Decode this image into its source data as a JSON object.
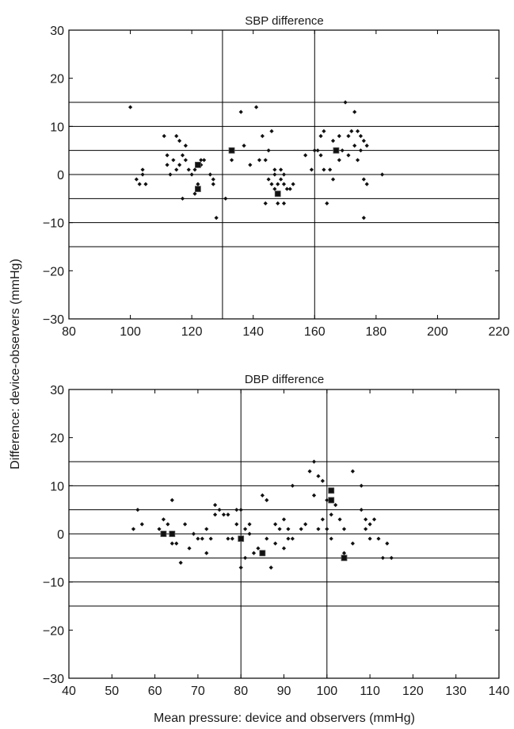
{
  "figure": {
    "ylabel": "Difference: device-observers (mmHg)",
    "xlabel": "Mean pressure: device and observers (mmHg)"
  },
  "colors": {
    "axis": "#000000",
    "marker": "#111111",
    "background": "#ffffff"
  },
  "chart_data": [
    {
      "type": "scatter",
      "title": "SBP difference",
      "xlim": [
        80,
        220
      ],
      "ylim": [
        -30,
        30
      ],
      "xticks": [
        "80",
        "100",
        "120",
        "140",
        "160",
        "180",
        "200",
        "220"
      ],
      "yticks": [
        "30",
        "20",
        "10",
        "0",
        "−10",
        "−20",
        "−30"
      ],
      "xtick_values": [
        80,
        100,
        120,
        140,
        160,
        180,
        200,
        220
      ],
      "ytick_values": [
        30,
        20,
        10,
        0,
        -10,
        -20,
        -30
      ],
      "reference_lines_y": [
        15,
        10,
        5,
        0,
        -5,
        -10,
        -15
      ],
      "reference_lines_x": [
        130,
        160
      ],
      "grid": false,
      "series": [
        {
          "marker": "diamond",
          "points": [
            [
              100,
              14
            ],
            [
              102,
              -1
            ],
            [
              103,
              -2
            ],
            [
              104,
              1
            ],
            [
              104,
              0
            ],
            [
              105,
              -2
            ],
            [
              111,
              8
            ],
            [
              112,
              4
            ],
            [
              112,
              2
            ],
            [
              113,
              0
            ],
            [
              114,
              3
            ],
            [
              115,
              8
            ],
            [
              115,
              1
            ],
            [
              116,
              7
            ],
            [
              116,
              2
            ],
            [
              117,
              4
            ],
            [
              117,
              -5
            ],
            [
              118,
              6
            ],
            [
              118,
              3
            ],
            [
              119,
              1
            ],
            [
              120,
              0
            ],
            [
              121,
              -4
            ],
            [
              121,
              1
            ],
            [
              122,
              -2
            ],
            [
              123,
              3
            ],
            [
              123,
              2
            ],
            [
              124,
              3
            ],
            [
              126,
              0
            ],
            [
              127,
              -1
            ],
            [
              127,
              -2
            ],
            [
              128,
              -9
            ],
            [
              131,
              -5
            ],
            [
              133,
              3
            ],
            [
              136,
              13
            ],
            [
              137,
              6
            ],
            [
              139,
              2
            ],
            [
              141,
              14
            ],
            [
              142,
              3
            ],
            [
              143,
              8
            ],
            [
              144,
              3
            ],
            [
              144,
              -6
            ],
            [
              145,
              5
            ],
            [
              145,
              -1
            ],
            [
              146,
              9
            ],
            [
              146,
              -2
            ],
            [
              147,
              1
            ],
            [
              147,
              -3
            ],
            [
              147,
              0
            ],
            [
              148,
              -6
            ],
            [
              148,
              -2
            ],
            [
              149,
              1
            ],
            [
              149,
              -1
            ],
            [
              150,
              -2
            ],
            [
              150,
              -6
            ],
            [
              150,
              0
            ],
            [
              151,
              -3
            ],
            [
              152,
              -3
            ],
            [
              153,
              -2
            ],
            [
              157,
              4
            ],
            [
              159,
              1
            ],
            [
              160,
              5
            ],
            [
              161,
              5
            ],
            [
              162,
              8
            ],
            [
              162,
              4
            ],
            [
              163,
              9
            ],
            [
              163,
              1
            ],
            [
              164,
              -6
            ],
            [
              165,
              1
            ],
            [
              166,
              7
            ],
            [
              166,
              -1
            ],
            [
              168,
              3
            ],
            [
              168,
              8
            ],
            [
              169,
              5
            ],
            [
              170,
              15
            ],
            [
              171,
              4
            ],
            [
              171,
              8
            ],
            [
              172,
              9
            ],
            [
              173,
              13
            ],
            [
              173,
              6
            ],
            [
              174,
              9
            ],
            [
              174,
              3
            ],
            [
              175,
              5
            ],
            [
              175,
              8
            ],
            [
              176,
              7
            ],
            [
              176,
              -1
            ],
            [
              176,
              -9
            ],
            [
              177,
              6
            ],
            [
              177,
              -2
            ],
            [
              182,
              0
            ]
          ]
        },
        {
          "marker": "square",
          "points": [
            [
              122,
              2
            ],
            [
              122,
              -3
            ],
            [
              133,
              5
            ],
            [
              148,
              -4
            ],
            [
              167,
              5
            ]
          ]
        }
      ]
    },
    {
      "type": "scatter",
      "title": "DBP difference",
      "xlim": [
        40,
        140
      ],
      "ylim": [
        -30,
        30
      ],
      "xticks": [
        "40",
        "50",
        "60",
        "70",
        "80",
        "90",
        "100",
        "110",
        "120",
        "130",
        "140"
      ],
      "yticks": [
        "30",
        "20",
        "10",
        "0",
        "−10",
        "−20",
        "−30"
      ],
      "xtick_values": [
        40,
        50,
        60,
        70,
        80,
        90,
        100,
        110,
        120,
        130,
        140
      ],
      "ytick_values": [
        30,
        20,
        10,
        0,
        -10,
        -20,
        -30
      ],
      "reference_lines_y": [
        15,
        10,
        5,
        0,
        -5,
        -10,
        -15
      ],
      "reference_lines_x": [
        80,
        100
      ],
      "grid": false,
      "series": [
        {
          "marker": "diamond",
          "points": [
            [
              55,
              1
            ],
            [
              56,
              5
            ],
            [
              57,
              2
            ],
            [
              61,
              1
            ],
            [
              62,
              3
            ],
            [
              63,
              2
            ],
            [
              64,
              -2
            ],
            [
              64,
              7
            ],
            [
              65,
              -2
            ],
            [
              66,
              -6
            ],
            [
              67,
              2
            ],
            [
              68,
              -3
            ],
            [
              69,
              0
            ],
            [
              70,
              -1
            ],
            [
              71,
              -1
            ],
            [
              72,
              1
            ],
            [
              72,
              -4
            ],
            [
              73,
              -1
            ],
            [
              74,
              6
            ],
            [
              74,
              4
            ],
            [
              75,
              5
            ],
            [
              76,
              4
            ],
            [
              77,
              4
            ],
            [
              77,
              -1
            ],
            [
              78,
              -1
            ],
            [
              79,
              5
            ],
            [
              79,
              2
            ],
            [
              80,
              5
            ],
            [
              80,
              -7
            ],
            [
              81,
              1
            ],
            [
              81,
              -5
            ],
            [
              82,
              2
            ],
            [
              82,
              0
            ],
            [
              83,
              -4
            ],
            [
              84,
              -3
            ],
            [
              85,
              8
            ],
            [
              86,
              -1
            ],
            [
              86,
              7
            ],
            [
              87,
              -7
            ],
            [
              88,
              -2
            ],
            [
              88,
              2
            ],
            [
              89,
              1
            ],
            [
              90,
              3
            ],
            [
              90,
              -3
            ],
            [
              91,
              1
            ],
            [
              91,
              -1
            ],
            [
              92,
              10
            ],
            [
              92,
              -1
            ],
            [
              94,
              1
            ],
            [
              95,
              2
            ],
            [
              96,
              13
            ],
            [
              97,
              15
            ],
            [
              97,
              8
            ],
            [
              98,
              12
            ],
            [
              98,
              1
            ],
            [
              99,
              11
            ],
            [
              99,
              3
            ],
            [
              100,
              7
            ],
            [
              100,
              1
            ],
            [
              101,
              4
            ],
            [
              101,
              -1
            ],
            [
              102,
              6
            ],
            [
              103,
              3
            ],
            [
              104,
              -4
            ],
            [
              104,
              1
            ],
            [
              106,
              13
            ],
            [
              106,
              -2
            ],
            [
              108,
              5
            ],
            [
              108,
              10
            ],
            [
              109,
              3
            ],
            [
              109,
              1
            ],
            [
              110,
              2
            ],
            [
              110,
              -1
            ],
            [
              111,
              3
            ],
            [
              112,
              -1
            ],
            [
              113,
              -5
            ],
            [
              114,
              -2
            ],
            [
              115,
              -5
            ]
          ]
        },
        {
          "marker": "square",
          "points": [
            [
              62,
              0
            ],
            [
              64,
              0
            ],
            [
              80,
              -1
            ],
            [
              85,
              -4
            ],
            [
              101,
              9
            ],
            [
              101,
              7
            ],
            [
              104,
              -5
            ]
          ]
        }
      ]
    }
  ]
}
